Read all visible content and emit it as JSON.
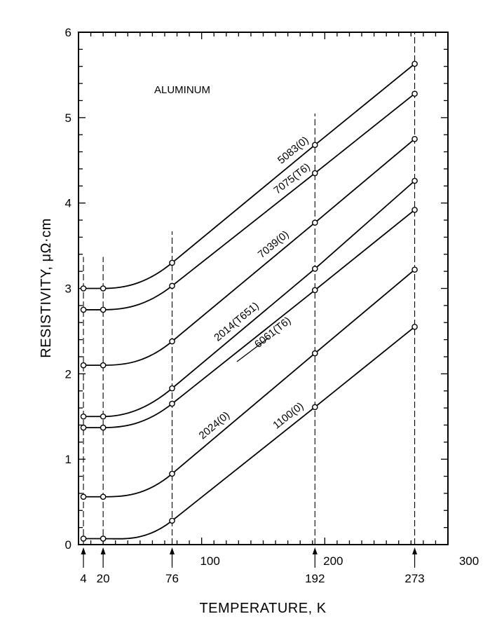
{
  "chart_data": {
    "type": "line",
    "title": "",
    "annotation": "ALUMINUM",
    "xlabel": "TEMPERATURE, K",
    "ylabel": "RESISTIVITY, μΩ·cm",
    "xlim": [
      0,
      300
    ],
    "ylim": [
      0,
      6
    ],
    "x_ticks": [
      100,
      200,
      300
    ],
    "y_ticks": [
      0,
      1,
      2,
      3,
      4,
      5,
      6
    ],
    "measured_temperatures": [
      4,
      20,
      76,
      192,
      273
    ],
    "measured_temperature_labels": [
      "4",
      "20",
      "76",
      "192",
      "273"
    ],
    "grid": false,
    "legend": "none (series labeled inline)",
    "series": [
      {
        "name": "5083(0)",
        "x": [
          4,
          20,
          76,
          192,
          273
        ],
        "y": [
          3.0,
          3.0,
          3.3,
          4.68,
          5.63
        ]
      },
      {
        "name": "7075(T6)",
        "x": [
          4,
          20,
          76,
          192,
          273
        ],
        "y": [
          2.75,
          2.75,
          3.03,
          4.35,
          5.28
        ]
      },
      {
        "name": "7039(0)",
        "x": [
          4,
          20,
          76,
          192,
          273
        ],
        "y": [
          2.1,
          2.1,
          2.38,
          3.77,
          4.75
        ]
      },
      {
        "name": "2014(T651)",
        "x": [
          4,
          20,
          76,
          192,
          273
        ],
        "y": [
          1.5,
          1.5,
          1.83,
          3.23,
          4.26
        ]
      },
      {
        "name": "6061(T6)",
        "x": [
          4,
          20,
          76,
          192,
          273
        ],
        "y": [
          1.37,
          1.37,
          1.65,
          2.98,
          3.92
        ]
      },
      {
        "name": "2024(0)",
        "x": [
          4,
          20,
          76,
          192,
          273
        ],
        "y": [
          0.56,
          0.56,
          0.83,
          2.24,
          3.22
        ]
      },
      {
        "name": "1100(0)",
        "x": [
          4,
          20,
          76,
          192,
          273
        ],
        "y": [
          0.07,
          0.07,
          0.28,
          1.61,
          2.55
        ]
      }
    ]
  }
}
